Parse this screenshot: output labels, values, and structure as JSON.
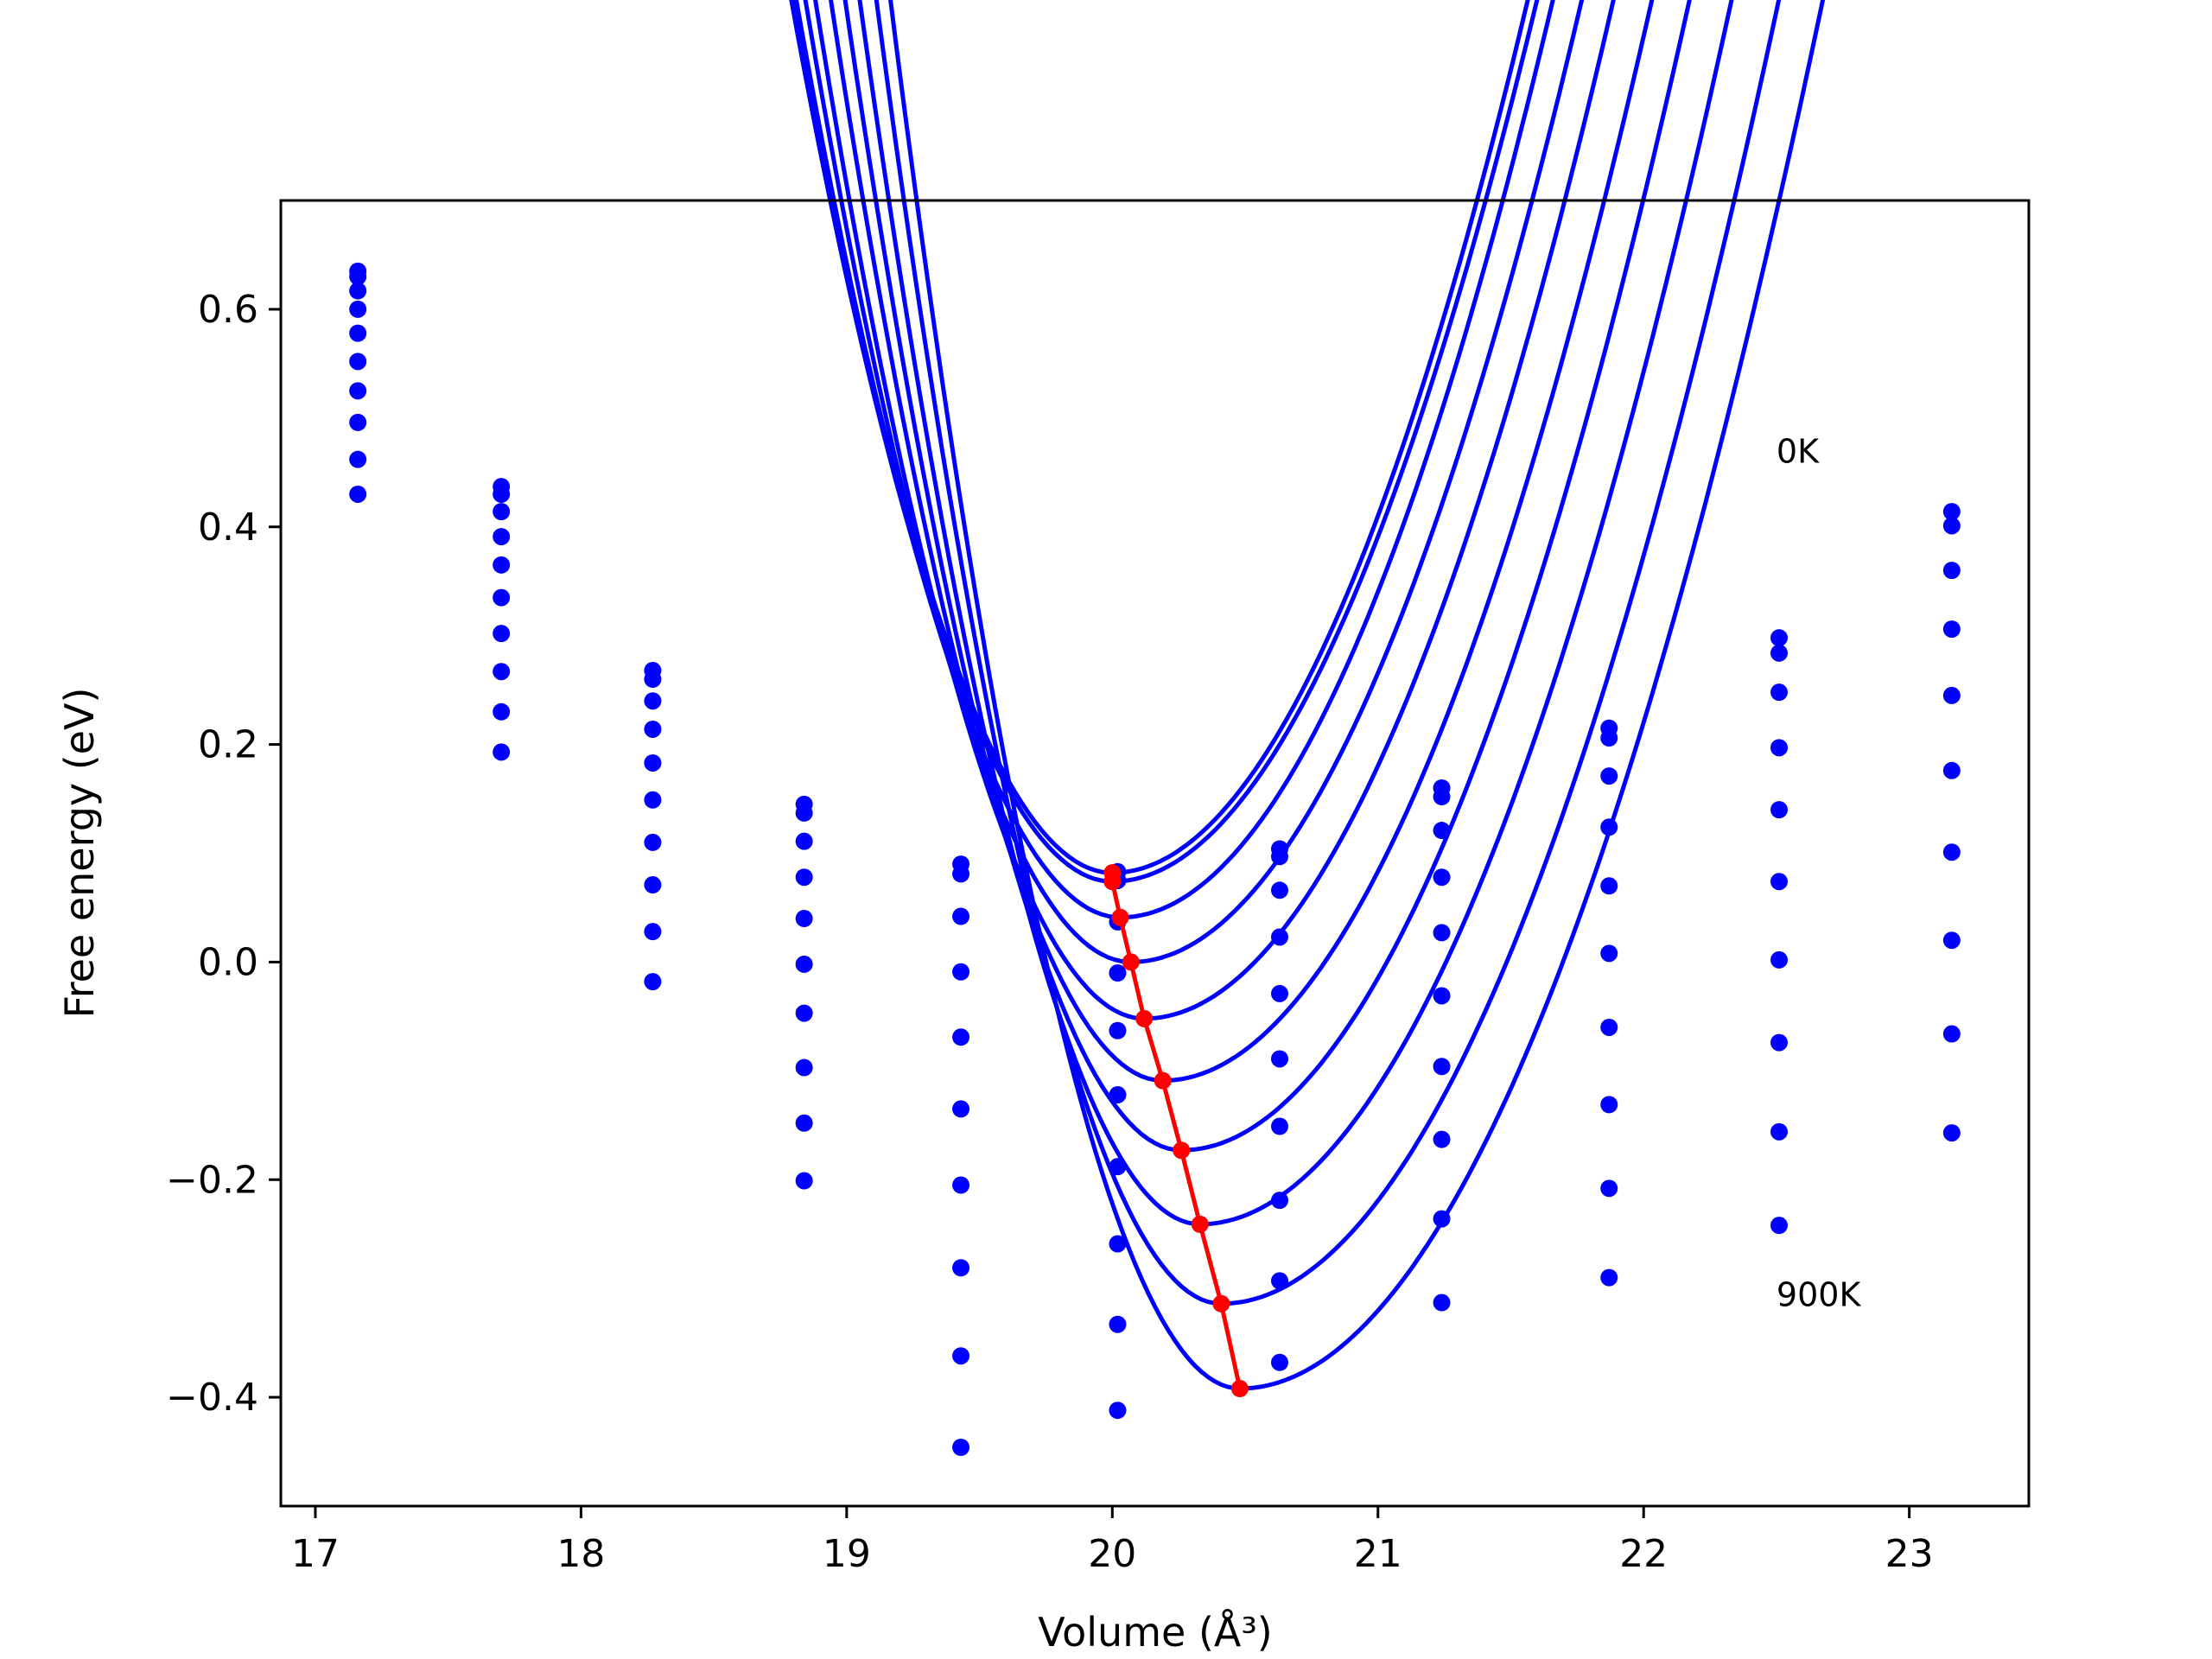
{
  "chart_data": {
    "type": "line",
    "title": "",
    "xlabel": "Volume (Å³)",
    "ylabel": "Free energy (eV)",
    "xlim": [
      16.87,
      23.45
    ],
    "ylim": [
      -0.5,
      0.7
    ],
    "xticks": [
      17,
      18,
      19,
      20,
      21,
      22,
      23
    ],
    "yticks": [
      -0.4,
      -0.2,
      0.0,
      0.2,
      0.4,
      0.6
    ],
    "xtick_labels": [
      "17",
      "18",
      "19",
      "20",
      "21",
      "22",
      "23"
    ],
    "ytick_labels": [
      "−0.4",
      "−0.2",
      "0.0",
      "0.2",
      "0.4",
      "0.6"
    ],
    "grid": false,
    "legend": "none",
    "colors": {
      "curves": "#0000ff",
      "points": "#0000ff",
      "minimum": "#ff0000"
    },
    "annotations": [
      {
        "text": "0K",
        "x": 22.5,
        "y": 0.47
      },
      {
        "text": "900K",
        "x": 22.5,
        "y": -0.305
      }
    ],
    "x": [
      17.16,
      17.7,
      18.27,
      18.84,
      19.43,
      20.02,
      20.63,
      21.24,
      21.87,
      22.51,
      23.16
    ],
    "series": [
      {
        "values": [
          0.635,
          0.437,
          0.268,
          0.145,
          0.09,
          0.083,
          0.104,
          0.16,
          0.215,
          0.298,
          0.414
        ]
      },
      {
        "values": [
          0.63,
          0.43,
          0.26,
          0.137,
          0.081,
          0.075,
          0.097,
          0.152,
          0.206,
          0.284,
          0.401
        ]
      },
      {
        "values": [
          0.617,
          0.414,
          0.24,
          0.111,
          0.042,
          0.037,
          0.066,
          0.121,
          0.171,
          0.248,
          0.36
        ]
      },
      {
        "values": [
          0.6,
          0.391,
          0.214,
          0.078,
          -0.009,
          -0.01,
          0.023,
          0.078,
          0.124,
          0.197,
          0.306
        ]
      },
      {
        "values": [
          0.578,
          0.365,
          0.183,
          0.04,
          -0.069,
          -0.063,
          -0.029,
          0.027,
          0.07,
          0.14,
          0.245
        ]
      },
      {
        "values": [
          0.552,
          0.335,
          0.149,
          -0.002,
          -0.135,
          -0.122,
          -0.089,
          -0.031,
          0.008,
          0.074,
          0.176
        ]
      },
      {
        "values": [
          0.525,
          0.302,
          0.11,
          -0.047,
          -0.205,
          -0.188,
          -0.151,
          -0.096,
          -0.06,
          0.002,
          0.101
        ]
      },
      {
        "values": [
          0.496,
          0.267,
          0.071,
          -0.097,
          -0.281,
          -0.259,
          -0.219,
          -0.163,
          -0.131,
          -0.074,
          0.02
        ]
      },
      {
        "values": [
          0.462,
          0.23,
          0.028,
          -0.148,
          -0.362,
          -0.333,
          -0.293,
          -0.236,
          -0.208,
          -0.156,
          -0.066
        ]
      },
      {
        "values": [
          0.43,
          0.193,
          -0.018,
          -0.201,
          -0.446,
          -0.412,
          -0.368,
          -0.313,
          -0.29,
          -0.242,
          -0.157
        ]
      }
    ],
    "fits": [
      {
        "vmin": 20.0,
        "emin": 0.082,
        "left": 0.553,
        "right": 0.328
      },
      {
        "vmin": 20.0,
        "emin": 0.074,
        "left": 0.555,
        "right": 0.317
      },
      {
        "vmin": 20.03,
        "emin": 0.041,
        "left": 0.567,
        "right": 0.318
      },
      {
        "vmin": 20.07,
        "emin": 0.0,
        "left": 0.589,
        "right": 0.307
      },
      {
        "vmin": 20.12,
        "emin": -0.052,
        "left": 0.611,
        "right": 0.3
      },
      {
        "vmin": 20.19,
        "emin": -0.109,
        "left": 0.636,
        "right": 0.293
      },
      {
        "vmin": 20.26,
        "emin": -0.173,
        "left": 0.66,
        "right": 0.289
      },
      {
        "vmin": 20.33,
        "emin": -0.241,
        "left": 0.686,
        "right": 0.281
      },
      {
        "vmin": 20.41,
        "emin": -0.314,
        "left": 0.711,
        "right": 0.272
      },
      {
        "vmin": 20.48,
        "emin": -0.392,
        "left": 0.738,
        "right": 0.265
      }
    ],
    "minima": {
      "x": [
        20.0,
        20.0,
        20.03,
        20.07,
        20.12,
        20.19,
        20.26,
        20.33,
        20.41,
        20.48
      ],
      "y": [
        0.082,
        0.074,
        0.041,
        0.0,
        -0.052,
        -0.109,
        -0.173,
        -0.241,
        -0.314,
        -0.392
      ]
    }
  }
}
